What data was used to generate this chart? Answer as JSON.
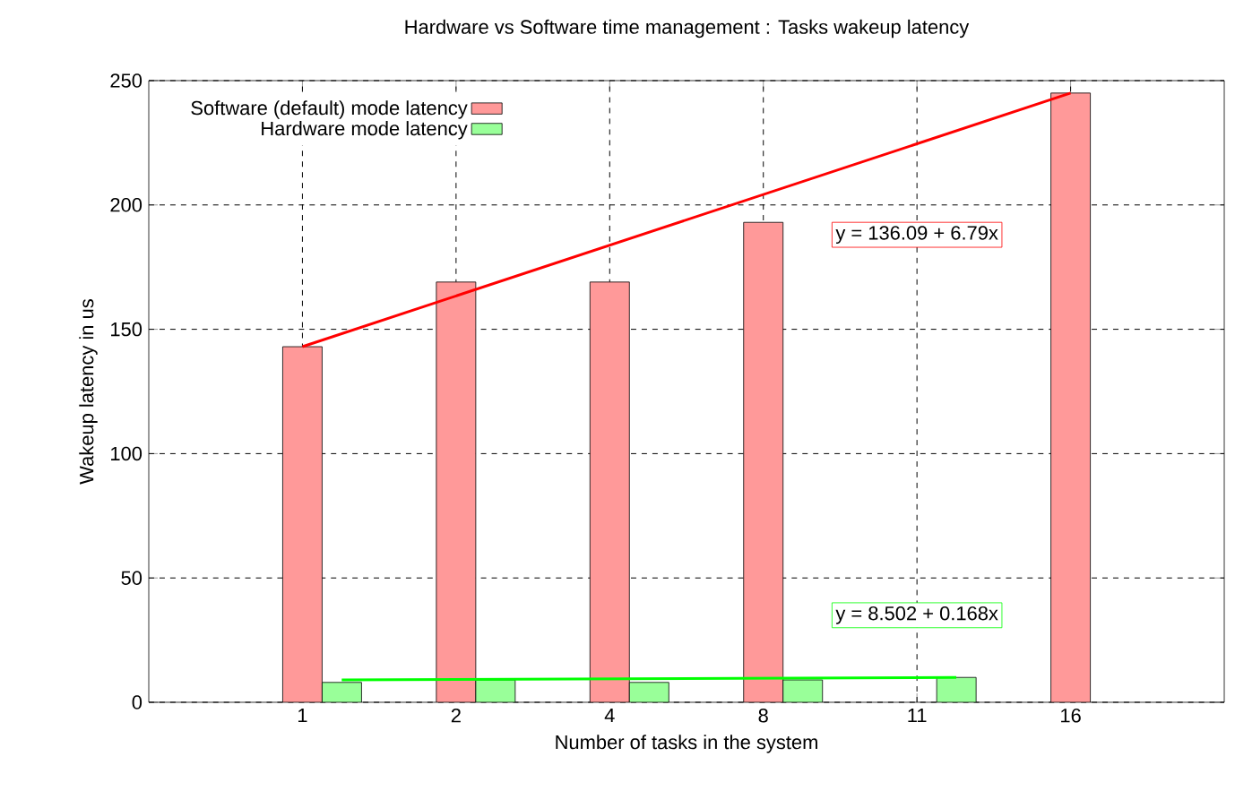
{
  "chart_data": {
    "type": "bar",
    "title": "Hardware vs Software time management : Tasks wakeup latency",
    "xlabel": "Number of tasks in the system",
    "ylabel": "Wakeup latency in us",
    "categories": [
      "1",
      "2",
      "4",
      "8",
      "11",
      "16"
    ],
    "series": [
      {
        "name": "Software (default) mode latency",
        "color": "#ff9999",
        "values": [
          143,
          169,
          169,
          193,
          null,
          245
        ]
      },
      {
        "name": "Hardware mode latency",
        "color": "#99ff99",
        "values": [
          8,
          9,
          8,
          9,
          10,
          null
        ]
      },
      {
        "type": "line",
        "color": "#ff0000",
        "values": [
          143,
          null,
          null,
          null,
          null,
          245
        ]
      },
      {
        "type": "line",
        "color": "#00ff00",
        "values": [
          9,
          null,
          null,
          null,
          10,
          null
        ]
      }
    ],
    "annotations": [
      "y = 136.09 + 6.79x",
      "y = 8.502 + 0.168x"
    ],
    "ylim": [
      0,
      250
    ],
    "yticks": [
      0,
      50,
      100,
      150,
      200,
      250
    ],
    "grid": true,
    "legend": "top left"
  }
}
